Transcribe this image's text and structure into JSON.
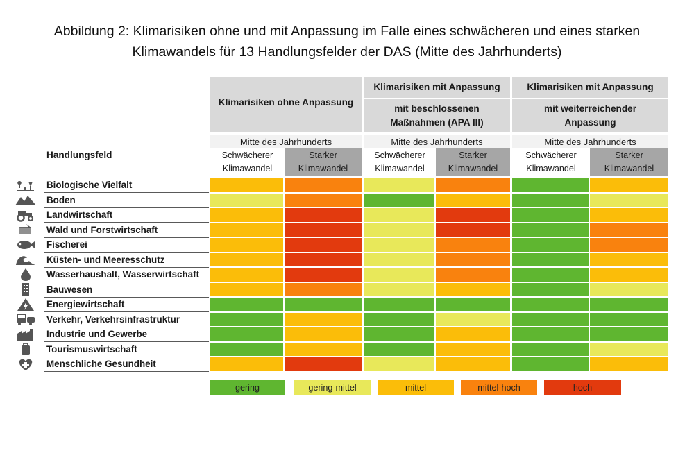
{
  "figure": {
    "title_line1": "Abbildung 2: Klimarisiken ohne und mit Anpassung im Falle eines schwächeren und eines starken",
    "title_line2": "Klimawandels für 13 Handlungsfelder der DAS (Mitte des Jahrhunderts)"
  },
  "header": {
    "group1": "Klimarisiken ohne Anpassung",
    "group2_top": "Klimarisiken mit Anpassung",
    "group2_sub": "mit beschlossenen Maßnahmen (APA III)",
    "group3_top": "Klimarisiken mit Anpassung",
    "group3_sub": "mit weiterreichender Anpassung",
    "period": "Mitte des Jahrhunderts",
    "scenario_weak": "Schwächerer Klimawandel",
    "scenario_strong": "Starker Klimawandel",
    "row_header": "Handlungsfeld"
  },
  "colors": {
    "gering": "#5fb630",
    "gering-mittel": "#e8e85a",
    "mittel": "#fbbd09",
    "mittel-hoch": "#f9820e",
    "hoch": "#e23a0e"
  },
  "chart_data": {
    "type": "heatmap",
    "title": "Klimarisiken ohne und mit Anpassung im Falle eines schwächeren und eines starken Klimawandels für 13 Handlungsfelder der DAS (Mitte des Jahrhunderts)",
    "columns": [
      "Klimarisiken ohne Anpassung – Schwächerer Klimawandel",
      "Klimarisiken ohne Anpassung – Starker Klimawandel",
      "mit beschlossenen Maßnahmen (APA III) – Schwächerer Klimawandel",
      "mit beschlossenen Maßnahmen (APA III) – Starker Klimawandel",
      "mit weiterreichender Anpassung – Schwächerer Klimawandel",
      "mit weiterreichender Anpassung – Starker Klimawandel"
    ],
    "scale": [
      "gering",
      "gering-mittel",
      "mittel",
      "mittel-hoch",
      "hoch"
    ],
    "rows": [
      {
        "label": "Biologische Vielfalt",
        "icon": "biodiversity-icon",
        "values": [
          "mittel",
          "mittel-hoch",
          "gering-mittel",
          "mittel-hoch",
          "gering",
          "mittel"
        ]
      },
      {
        "label": "Boden",
        "icon": "soil-icon",
        "values": [
          "gering-mittel",
          "mittel-hoch",
          "gering",
          "mittel",
          "gering",
          "gering-mittel"
        ]
      },
      {
        "label": "Landwirtschaft",
        "icon": "tractor-icon",
        "values": [
          "mittel",
          "hoch",
          "gering-mittel",
          "hoch",
          "gering",
          "mittel"
        ]
      },
      {
        "label": "Wald und Forstwirtschaft",
        "icon": "forest-icon",
        "values": [
          "mittel",
          "hoch",
          "gering-mittel",
          "hoch",
          "gering",
          "mittel-hoch"
        ]
      },
      {
        "label": "Fischerei",
        "icon": "fish-icon",
        "values": [
          "mittel",
          "hoch",
          "gering-mittel",
          "mittel-hoch",
          "gering",
          "mittel-hoch"
        ]
      },
      {
        "label": "Küsten- und Meeresschutz",
        "icon": "wave-icon",
        "values": [
          "mittel",
          "hoch",
          "gering-mittel",
          "mittel-hoch",
          "gering",
          "mittel"
        ]
      },
      {
        "label": "Wasserhaushalt, Wasserwirtschaft",
        "icon": "water-drop-icon",
        "values": [
          "mittel",
          "hoch",
          "gering-mittel",
          "mittel-hoch",
          "gering",
          "mittel"
        ]
      },
      {
        "label": "Bauwesen",
        "icon": "building-icon",
        "values": [
          "mittel",
          "mittel-hoch",
          "gering-mittel",
          "mittel",
          "gering",
          "gering-mittel"
        ]
      },
      {
        "label": "Energiewirtschaft",
        "icon": "energy-icon",
        "values": [
          "gering",
          "gering",
          "gering",
          "gering",
          "gering",
          "gering"
        ]
      },
      {
        "label": "Verkehr, Verkehrsinfrastruktur",
        "icon": "transport-icon",
        "values": [
          "gering",
          "mittel",
          "gering",
          "gering-mittel",
          "gering",
          "gering"
        ]
      },
      {
        "label": "Industrie und Gewerbe",
        "icon": "factory-icon",
        "values": [
          "gering",
          "mittel",
          "gering",
          "mittel",
          "gering",
          "gering"
        ]
      },
      {
        "label": "Tourismuswirtschaft",
        "icon": "suitcase-icon",
        "values": [
          "gering",
          "mittel",
          "gering",
          "mittel",
          "gering",
          "gering-mittel"
        ]
      },
      {
        "label": "Menschliche Gesundheit",
        "icon": "health-icon",
        "values": [
          "mittel",
          "hoch",
          "gering-mittel",
          "mittel",
          "gering",
          "mittel"
        ]
      }
    ]
  },
  "legend": [
    {
      "label": "gering",
      "key": "gering"
    },
    {
      "label": "gering-mittel",
      "key": "gering-mittel"
    },
    {
      "label": "mittel",
      "key": "mittel"
    },
    {
      "label": "mittel-hoch",
      "key": "mittel-hoch"
    },
    {
      "label": "hoch",
      "key": "hoch"
    }
  ]
}
